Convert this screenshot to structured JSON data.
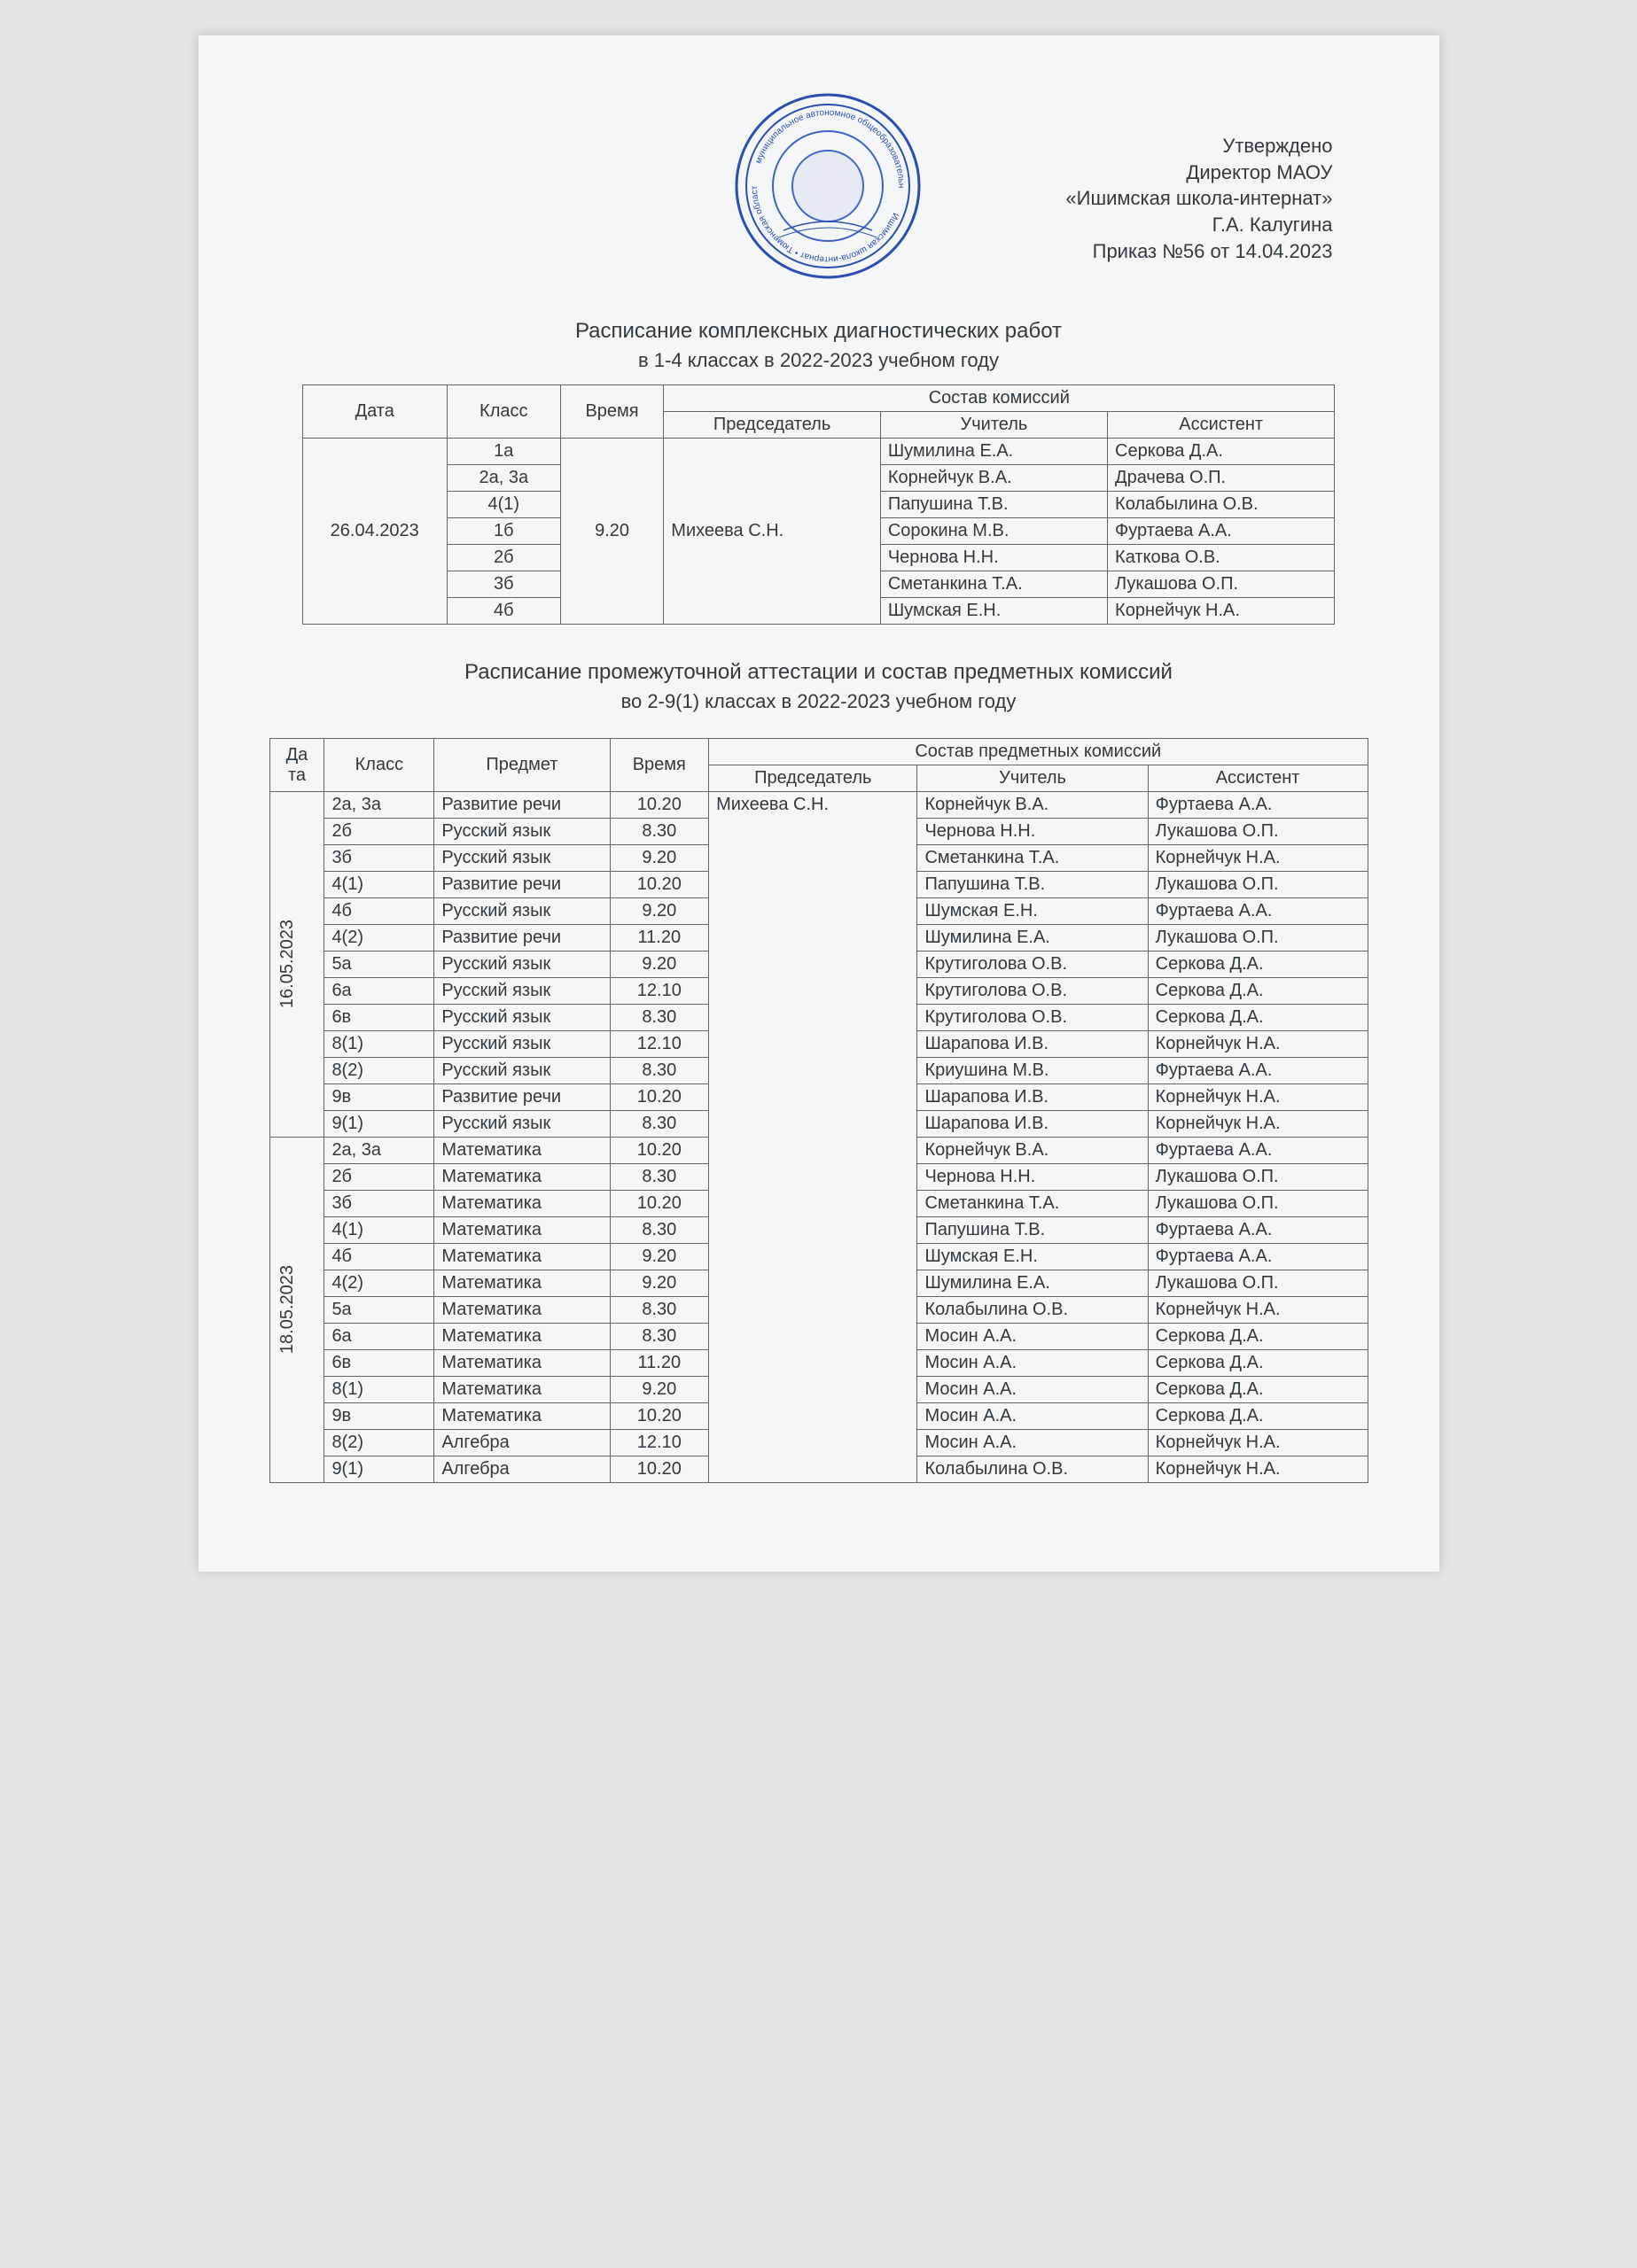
{
  "approval": {
    "line1": "Утверждено",
    "line2": "Директор МАОУ",
    "line3": "«Ишимская школа-интернат»",
    "line4": "Г.А. Калугина",
    "line5": "Приказ №56 от 14.04.2023"
  },
  "stamp": {
    "outer_color": "#2a4fb0",
    "inner_color": "#6b8de0",
    "radius": 105
  },
  "section1": {
    "title": "Расписание комплексных диагностических работ",
    "subtitle": "в 1-4 классах в 2022-2023 учебном году",
    "headers": {
      "date": "Дата",
      "class": "Класс",
      "time": "Время",
      "commission": "Состав комиссий",
      "chair": "Председатель",
      "teacher": "Учитель",
      "assistant": "Ассистент"
    },
    "date": "26.04.2023",
    "time": "9.20",
    "chair": "Михеева С.Н.",
    "rows": [
      {
        "cls": "1а",
        "teacher": "Шумилина Е.А.",
        "assist": "Серкова Д.А."
      },
      {
        "cls": "2а, 3а",
        "teacher": "Корнейчук В.А.",
        "assist": "Драчева О.П."
      },
      {
        "cls": "4(1)",
        "teacher": "Папушина Т.В.",
        "assist": "Колабылина О.В."
      },
      {
        "cls": "1б",
        "teacher": "Сорокина М.В.",
        "assist": "Фуртаева А.А."
      },
      {
        "cls": "2б",
        "teacher": "Чернова Н.Н.",
        "assist": "Каткова О.В."
      },
      {
        "cls": "3б",
        "teacher": "Сметанкина Т.А.",
        "assist": "Лукашова О.П."
      },
      {
        "cls": "4б",
        "teacher": "Шумская Е.Н.",
        "assist": "Корнейчук Н.А."
      }
    ]
  },
  "section2": {
    "title": "Расписание промежуточной аттестации и состав предметных комиссий",
    "subtitle": "во 2-9(1) классах в 2022-2023 учебном году",
    "headers": {
      "date": "Да\nта",
      "class": "Класс",
      "subject": "Предмет",
      "time": "Время",
      "commission": "Состав предметных комиссий",
      "chair": "Председатель",
      "teacher": "Учитель",
      "assistant": "Ассистент"
    },
    "chair": "Михеева С.Н.",
    "groups": [
      {
        "date": "16.05.2023",
        "rows": [
          {
            "cls": "2а, 3а",
            "subj": "Развитие речи",
            "time": "10.20",
            "teacher": "Корнейчук В.А.",
            "assist": "Фуртаева А.А."
          },
          {
            "cls": "2б",
            "subj": "Русский язык",
            "time": "8.30",
            "teacher": "Чернова Н.Н.",
            "assist": "Лукашова О.П."
          },
          {
            "cls": "3б",
            "subj": "Русский язык",
            "time": "9.20",
            "teacher": "Сметанкина Т.А.",
            "assist": "Корнейчук Н.А."
          },
          {
            "cls": "4(1)",
            "subj": "Развитие речи",
            "time": "10.20",
            "teacher": "Папушина Т.В.",
            "assist": "Лукашова О.П."
          },
          {
            "cls": "4б",
            "subj": "Русский язык",
            "time": "9.20",
            "teacher": "Шумская Е.Н.",
            "assist": "Фуртаева А.А."
          },
          {
            "cls": "4(2)",
            "subj": "Развитие речи",
            "time": "11.20",
            "teacher": "Шумилина Е.А.",
            "assist": "Лукашова О.П."
          },
          {
            "cls": "5а",
            "subj": "Русский язык",
            "time": "9.20",
            "teacher": "Крутиголова О.В.",
            "assist": "Серкова Д.А."
          },
          {
            "cls": "6а",
            "subj": "Русский язык",
            "time": "12.10",
            "teacher": "Крутиголова О.В.",
            "assist": "Серкова Д.А."
          },
          {
            "cls": "6в",
            "subj": "Русский язык",
            "time": "8.30",
            "teacher": "Крутиголова О.В.",
            "assist": "Серкова Д.А."
          },
          {
            "cls": "8(1)",
            "subj": "Русский язык",
            "time": "12.10",
            "teacher": "Шарапова И.В.",
            "assist": "Корнейчук Н.А."
          },
          {
            "cls": "8(2)",
            "subj": "Русский язык",
            "time": "8.30",
            "teacher": "Криушина М.В.",
            "assist": "Фуртаева А.А."
          },
          {
            "cls": "9в",
            "subj": "Развитие речи",
            "time": "10.20",
            "teacher": "Шарапова И.В.",
            "assist": "Корнейчук Н.А."
          },
          {
            "cls": "9(1)",
            "subj": "Русский язык",
            "time": "8.30",
            "teacher": "Шарапова И.В.",
            "assist": "Корнейчук Н.А."
          }
        ]
      },
      {
        "date": "18.05.2023",
        "rows": [
          {
            "cls": "2а, 3а",
            "subj": "Математика",
            "time": "10.20",
            "teacher": "Корнейчук В.А.",
            "assist": "Фуртаева А.А."
          },
          {
            "cls": "2б",
            "subj": "Математика",
            "time": "8.30",
            "teacher": "Чернова Н.Н.",
            "assist": "Лукашова О.П."
          },
          {
            "cls": "3б",
            "subj": "Математика",
            "time": "10.20",
            "teacher": "Сметанкина Т.А.",
            "assist": "Лукашова О.П."
          },
          {
            "cls": "4(1)",
            "subj": "Математика",
            "time": "8.30",
            "teacher": "Папушина Т.В.",
            "assist": "Фуртаева А.А."
          },
          {
            "cls": "4б",
            "subj": "Математика",
            "time": "9.20",
            "teacher": "Шумская Е.Н.",
            "assist": "Фуртаева А.А."
          },
          {
            "cls": "4(2)",
            "subj": "Математика",
            "time": "9.20",
            "teacher": "Шумилина Е.А.",
            "assist": "Лукашова О.П."
          },
          {
            "cls": "5а",
            "subj": "Математика",
            "time": "8.30",
            "teacher": "Колабылина О.В.",
            "assist": "Корнейчук Н.А."
          },
          {
            "cls": "6а",
            "subj": "Математика",
            "time": "8.30",
            "teacher": "Мосин А.А.",
            "assist": "Серкова Д.А."
          },
          {
            "cls": "6в",
            "subj": "Математика",
            "time": "11.20",
            "teacher": "Мосин А.А.",
            "assist": "Серкова Д.А."
          },
          {
            "cls": "8(1)",
            "subj": "Математика",
            "time": "9.20",
            "teacher": "Мосин А.А.",
            "assist": "Серкова Д.А."
          },
          {
            "cls": "9в",
            "subj": "Математика",
            "time": "10.20",
            "teacher": "Мосин А.А.",
            "assist": "Серкова Д.А."
          },
          {
            "cls": "8(2)",
            "subj": "Алгебра",
            "time": "12.10",
            "teacher": "Мосин А.А.",
            "assist": "Корнейчук Н.А."
          },
          {
            "cls": "9(1)",
            "subj": "Алгебра",
            "time": "10.20",
            "teacher": "Колабылина О.В.",
            "assist": "Корнейчук Н.А."
          }
        ]
      }
    ]
  }
}
